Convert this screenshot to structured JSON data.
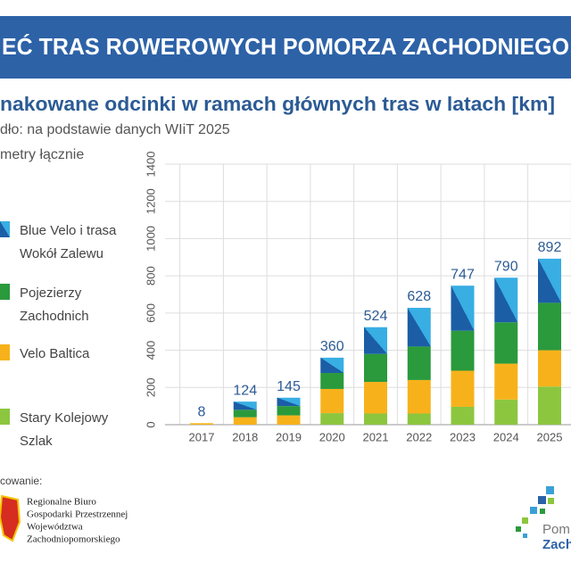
{
  "chart_data": {
    "type": "stacked-bar",
    "title": "EĆ TRAS ROWEROWYCH POMORZA ZACHODNIEGO",
    "subtitle": "nakowane odcinki w ramach głównych tras w latach [km]",
    "source": "dło: na podstawie danych WIiT 2025",
    "y_label": "metry łącznie",
    "categories": [
      "2017",
      "2018",
      "2019",
      "2020",
      "2021",
      "2022",
      "2023",
      "2024",
      "2025"
    ],
    "series": [
      {
        "name": "Stary Kolejowy Szlak",
        "color": "#8cc63f",
        "values": [
          0,
          0,
          0,
          62,
          60,
          60,
          96,
          135,
          205
        ]
      },
      {
        "name": "Velo Baltica",
        "color": "#f7b21b",
        "values": [
          8,
          40,
          50,
          130,
          170,
          180,
          194,
          193,
          195
        ]
      },
      {
        "name": "Pojezierzy Zachodnich",
        "color": "#2a9a3c",
        "values": [
          0,
          40,
          50,
          86,
          150,
          180,
          215,
          222,
          255
        ]
      },
      {
        "name": "Blue Velo i trasa Wokół Zalewu",
        "color": "#1b5ea6",
        "accent_color": "#38aee3",
        "values": [
          0,
          44,
          45,
          82,
          144,
          208,
          242,
          240,
          237
        ]
      }
    ],
    "totals": [
      8,
      124,
      145,
      360,
      524,
      628,
      747,
      790,
      892
    ],
    "ylim": [
      0,
      1400
    ],
    "yticks": [
      0,
      200,
      400,
      600,
      800,
      1000,
      1200,
      1400
    ],
    "grid": true
  },
  "footer": {
    "label": "cowanie:",
    "org": [
      "Regionalne Biuro",
      "Gospodarki Przestrzennej",
      "Województwa",
      "Zachodniopomorskiego"
    ],
    "brand": [
      "Pom",
      "Zachod"
    ]
  }
}
